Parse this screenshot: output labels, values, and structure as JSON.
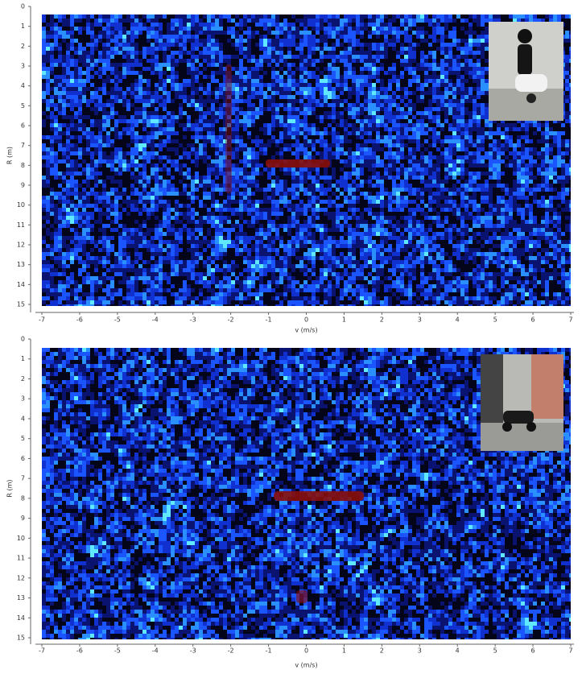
{
  "chart_data": [
    {
      "type": "heatmap",
      "xlabel": "v (m/s)",
      "ylabel": "R (m)",
      "xlim": [
        -7,
        7
      ],
      "xticks": [
        -7,
        -6,
        -5,
        -4,
        -3,
        -2,
        -1,
        0,
        1,
        2,
        3,
        4,
        5,
        6,
        7
      ],
      "ylim": [
        0,
        15
      ],
      "yticks": [
        0,
        1,
        2,
        3,
        4,
        5,
        6,
        7,
        8,
        9,
        10,
        11,
        12,
        13,
        14,
        15
      ],
      "y_reversed": true
    },
    {
      "type": "heatmap",
      "xlabel": "v (m/s)",
      "ylabel": "R (m)",
      "xlim": [
        -7,
        7
      ],
      "xticks": [
        -7,
        -6,
        -5,
        -4,
        -3,
        -2,
        -1,
        0,
        1,
        2,
        3,
        4,
        5,
        6,
        7
      ],
      "ylim": [
        0,
        15
      ],
      "yticks": [
        0,
        1,
        2,
        3,
        4,
        5,
        6,
        7,
        8,
        9,
        10,
        11,
        12,
        13,
        14,
        15
      ],
      "y_reversed": true
    }
  ]
}
